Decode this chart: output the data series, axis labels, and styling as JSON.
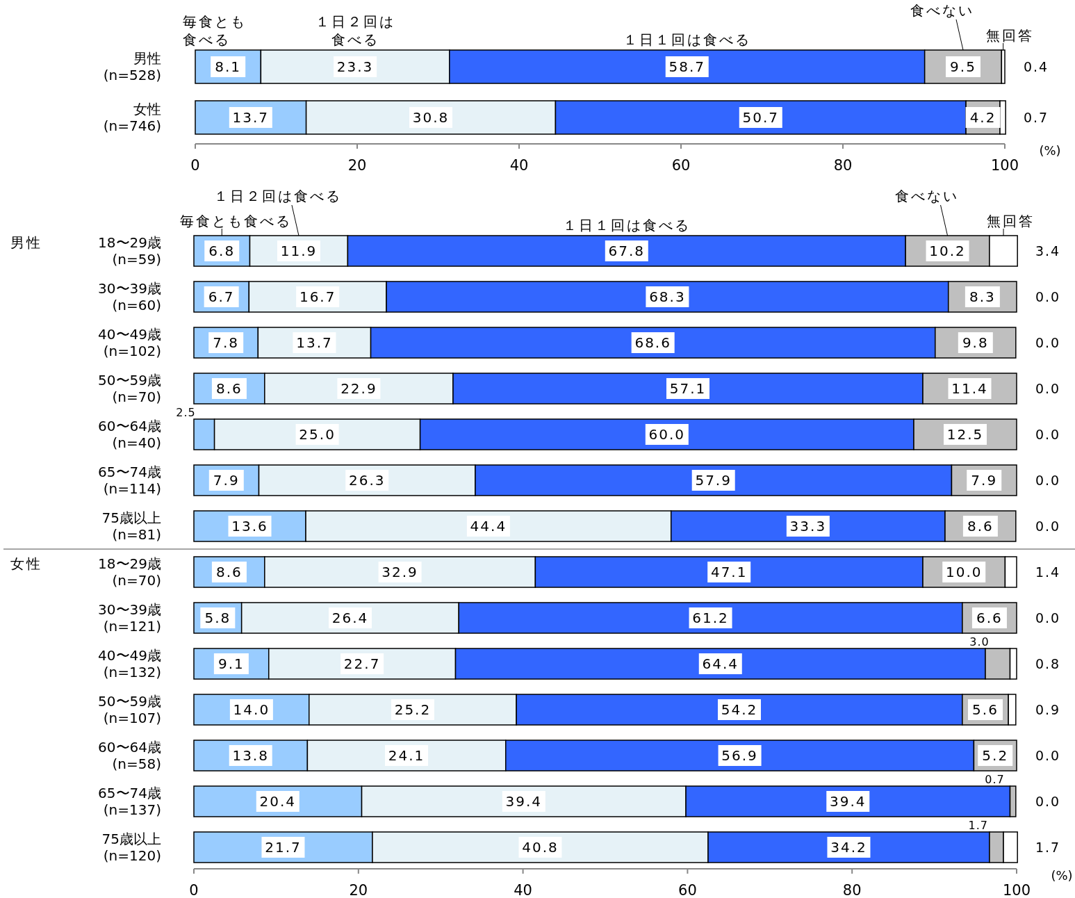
{
  "chart_data": [
    {
      "type": "bar",
      "orientation": "horizontal",
      "stacked": true,
      "xlim": [
        0,
        100
      ],
      "xticks": [
        0,
        20,
        40,
        60,
        80,
        100
      ],
      "categories": [
        "男性\n(n=528)",
        "女性\n(n=746)"
      ],
      "series": [
        {
          "name": "毎食とも食べる",
          "color": "#99ccff",
          "values": [
            8.1,
            13.7
          ],
          "value_labels": [
            "8.1",
            "13.7"
          ]
        },
        {
          "name": "１日２回は食べる",
          "color": "#e6f2f7",
          "values": [
            23.3,
            30.8
          ],
          "value_labels": [
            "23.3",
            "30.8"
          ]
        },
        {
          "name": "１日１回は食べる",
          "color": "#3366ff",
          "values": [
            58.7,
            50.7
          ],
          "value_labels": [
            "58.7",
            "50.7"
          ]
        },
        {
          "name": "食べない",
          "color": "#bfbfbf",
          "values": [
            9.5,
            4.2
          ],
          "value_labels": [
            "9.5",
            "4.2"
          ]
        },
        {
          "name": "無回答",
          "color": "#ffffff",
          "values": [
            0.4,
            0.7
          ],
          "value_labels": [
            "0.4",
            "0.7"
          ]
        }
      ],
      "annotations": [
        "(%)"
      ]
    },
    {
      "type": "bar",
      "orientation": "horizontal",
      "stacked": true,
      "xlim": [
        0,
        100
      ],
      "xticks": [
        0,
        20,
        40,
        60,
        80,
        100
      ],
      "categories": [
        "18〜29歳\n(n=59)",
        "30〜39歳\n(n=60)",
        "40〜49歳\n(n=102)",
        "50〜59歳\n(n=70)",
        "60〜64歳\n(n=40)",
        "65〜74歳\n(n=114)",
        "75歳以上\n(n=81)",
        "18〜29歳\n(n=70)",
        "30〜39歳\n(n=121)",
        "40〜49歳\n(n=132)",
        "50〜59歳\n(n=107)",
        "60〜64歳\n(n=58)",
        "65〜74歳\n(n=137)",
        "75歳以上\n(n=120)"
      ],
      "series": [
        {
          "name": "毎食とも食べる",
          "color": "#99ccff",
          "values": [
            6.8,
            6.7,
            7.8,
            8.6,
            2.5,
            7.9,
            13.6,
            8.6,
            5.8,
            9.1,
            14.0,
            13.8,
            20.4,
            21.7
          ],
          "value_labels": [
            "6.8",
            "6.7",
            "7.8",
            "8.6",
            "2.5",
            "7.9",
            "13.6",
            "8.6",
            "5.8",
            "9.1",
            "14.0",
            "13.8",
            "20.4",
            "21.7"
          ]
        },
        {
          "name": "１日２回は食べる",
          "color": "#e6f2f7",
          "values": [
            11.9,
            16.7,
            13.7,
            22.9,
            25.0,
            26.3,
            44.4,
            32.9,
            26.4,
            22.7,
            25.2,
            24.1,
            39.4,
            40.8
          ],
          "value_labels": [
            "11.9",
            "16.7",
            "13.7",
            "22.9",
            "25.0",
            "26.3",
            "44.4",
            "32.9",
            "26.4",
            "22.7",
            "25.2",
            "24.1",
            "39.4",
            "40.8"
          ]
        },
        {
          "name": "１日１回は食べる",
          "color": "#3366ff",
          "values": [
            67.8,
            68.3,
            68.6,
            57.1,
            60.0,
            57.9,
            33.3,
            47.1,
            61.2,
            64.4,
            54.2,
            56.9,
            39.4,
            34.2
          ],
          "value_labels": [
            "67.8",
            "68.3",
            "68.6",
            "57.1",
            "60.0",
            "57.9",
            "33.3",
            "47.1",
            "61.2",
            "64.4",
            "54.2",
            "56.9",
            "39.4",
            "34.2"
          ]
        },
        {
          "name": "食べない",
          "color": "#bfbfbf",
          "values": [
            10.2,
            8.3,
            9.8,
            11.4,
            12.5,
            7.9,
            8.6,
            10.0,
            6.6,
            3.0,
            5.6,
            5.2,
            0.7,
            1.7
          ],
          "value_labels": [
            "10.2",
            "8.3",
            "9.8",
            "11.4",
            "12.5",
            "7.9",
            "8.6",
            "10.0",
            "6.6",
            "3.0",
            "5.6",
            "5.2",
            "0.7",
            "1.7"
          ]
        },
        {
          "name": "無回答",
          "color": "#ffffff",
          "values": [
            3.4,
            0.0,
            0.0,
            0.0,
            0.0,
            0.0,
            0.0,
            1.4,
            0.0,
            0.8,
            0.9,
            0.0,
            0.0,
            1.7
          ],
          "value_labels": [
            "3.4",
            "0.0",
            "0.0",
            "0.0",
            "0.0",
            "0.0",
            "0.0",
            "1.4",
            "0.0",
            "0.8",
            "0.9",
            "0.0",
            "0.0",
            "1.7"
          ]
        }
      ],
      "annotations": [
        "男性",
        "女性",
        "(%)"
      ]
    }
  ]
}
